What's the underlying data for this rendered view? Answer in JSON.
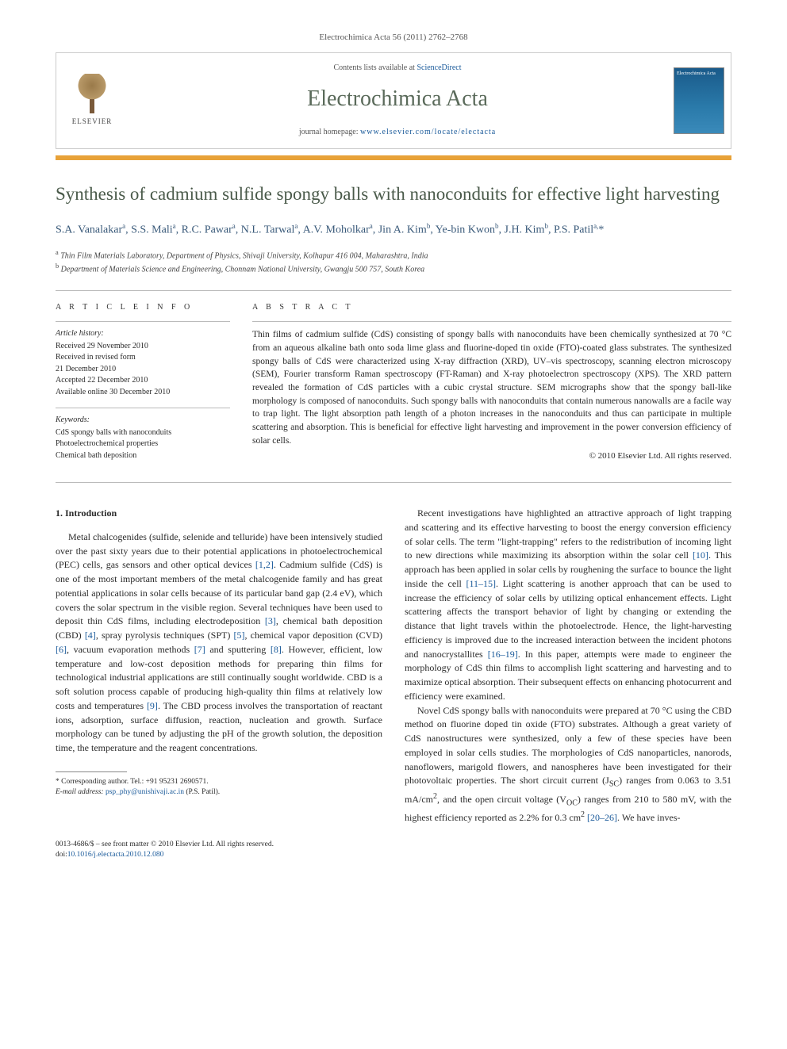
{
  "journal_ref": "Electrochimica Acta 56 (2011) 2762–2768",
  "header": {
    "contents_prefix": "Contents lists available at ",
    "contents_link": "ScienceDirect",
    "journal_title": "Electrochimica Acta",
    "homepage_prefix": "journal homepage: ",
    "homepage_url": "www.elsevier.com/locate/electacta",
    "elsevier_label": "ELSEVIER",
    "cover_text": "Electrochimica Acta"
  },
  "title": "Synthesis of cadmium sulfide spongy balls with nanoconduits for effective light harvesting",
  "authors_html": "S.A. Vanalakar<sup>a</sup>, S.S. Mali<sup>a</sup>, R.C. Pawar<sup>a</sup>, N.L. Tarwal<sup>a</sup>, A.V. Moholkar<sup>a</sup>, Jin A. Kim<sup>b</sup>, Ye-bin Kwon<sup>b</sup>, J.H. Kim<sup>b</sup>, P.S. Patil<sup>a,</sup>*",
  "affiliations": {
    "a": "Thin Film Materials Laboratory, Department of Physics, Shivaji University, Kolhapur 416 004, Maharashtra, India",
    "b": "Department of Materials Science and Engineering, Chonnam National University, Gwangju 500 757, South Korea"
  },
  "info": {
    "heading": "A R T I C L E   I N F O",
    "history_label": "Article history:",
    "received": "Received 29 November 2010",
    "revised1": "Received in revised form",
    "revised2": "21 December 2010",
    "accepted": "Accepted 22 December 2010",
    "online": "Available online 30 December 2010",
    "keywords_label": "Keywords:",
    "kw1": "CdS spongy balls with nanoconduits",
    "kw2": "Photoelectrochemical properties",
    "kw3": "Chemical bath deposition"
  },
  "abstract": {
    "heading": "A B S T R A C T",
    "text": "Thin films of cadmium sulfide (CdS) consisting of spongy balls with nanoconduits have been chemically synthesized at 70 °C from an aqueous alkaline bath onto soda lime glass and fluorine-doped tin oxide (FTO)-coated glass substrates. The synthesized spongy balls of CdS were characterized using X-ray diffraction (XRD), UV–vis spectroscopy, scanning electron microscopy (SEM), Fourier transform Raman spectroscopy (FT-Raman) and X-ray photoelectron spectroscopy (XPS). The XRD pattern revealed the formation of CdS particles with a cubic crystal structure. SEM micrographs show that the spongy ball-like morphology is composed of nanoconduits. Such spongy balls with nanoconduits that contain numerous nanowalls are a facile way to trap light. The light absorption path length of a photon increases in the nanoconduits and thus can participate in multiple scattering and absorption. This is beneficial for effective light harvesting and improvement in the power conversion efficiency of solar cells.",
    "copyright": "© 2010 Elsevier Ltd. All rights reserved."
  },
  "section1_head": "1.  Introduction",
  "col1": {
    "p1a": "Metal chalcogenides (sulfide, selenide and telluride) have been intensively studied over the past sixty years due to their potential applications in photoelectrochemical (PEC) cells, gas sensors and other optical devices ",
    "r1": "[1,2]",
    "p1b": ". Cadmium sulfide (CdS) is one of the most important members of the metal chalcogenide family and has great potential applications in solar cells because of its particular band gap (2.4 eV), which covers the solar spectrum in the visible region. Several techniques have been used to deposit thin CdS films, including electrodeposition ",
    "r3": "[3]",
    "p1c": ", chemical bath deposition (CBD) ",
    "r4": "[4]",
    "p1d": ", spray pyrolysis techniques (SPT) ",
    "r5": "[5]",
    "p1e": ", chemical vapor deposition (CVD) ",
    "r6": "[6]",
    "p1f": ", vacuum evaporation methods ",
    "r7": "[7]",
    "p1g": " and sputtering ",
    "r8": "[8]",
    "p1h": ". However, efficient, low temperature and low-cost deposition methods for preparing thin films for technological industrial applications are still continually sought worldwide. CBD is a soft solution process capable of producing high-quality thin films at relatively low costs and temperatures ",
    "r9": "[9]",
    "p1i": ". The CBD process involves the transportation of reactant ions, adsorption, surface diffusion, reaction, nucleation and growth. Surface morphology can be tuned by adjusting the pH of the growth solution, the deposition time, the temperature and the reagent concentrations."
  },
  "col2": {
    "p1a": "Recent investigations have highlighted an attractive approach of light trapping and scattering and its effective harvesting to boost the energy conversion efficiency of solar cells. The term \"light-trapping\" refers to the redistribution of incoming light to new directions while maximizing its absorption within the solar cell ",
    "r10": "[10]",
    "p1b": ". This approach has been applied in solar cells by roughening the surface to bounce the light inside the cell ",
    "r11": "[11–15]",
    "p1c": ". Light scattering is another approach that can be used to increase the efficiency of solar cells by utilizing optical enhancement effects. Light scattering affects the transport behavior of light by changing or extending the distance that light travels within the photoelectrode. Hence, the light-harvesting efficiency is improved due to the increased interaction between the incident photons and nanocrystallites ",
    "r16": "[16–19]",
    "p1d": ". In this paper, attempts were made to engineer the morphology of CdS thin films to accomplish light scattering and harvesting and to maximize optical absorption. Their subsequent effects on enhancing photocurrent and efficiency were examined.",
    "p2a": "Novel CdS spongy balls with nanoconduits were prepared at 70 °C using the CBD method on fluorine doped tin oxide (FTO) substrates. Although a great variety of CdS nanostructures were synthesized, only a few of these species have been employed in solar cells studies. The morphologies of CdS nanoparticles, nanorods, nanoflowers, marigold flowers, and nanospheres have been investigated for their photovoltaic properties. The short circuit current (J",
    "sc": "SC",
    "p2b": ") ranges from 0.063 to 3.51 mA/cm",
    "sq1": "2",
    "p2c": ", and the open circuit voltage (V",
    "oc": "OC",
    "p2d": ") ranges from 210 to 580 mV, with the highest efficiency reported as 2.2% for 0.3 cm",
    "sq2": "2",
    "sp": " ",
    "r20": "[20–26]",
    "p2e": ". We have inves-"
  },
  "footnote": {
    "corr": "* Corresponding author. Tel.: +91 95231 2690571.",
    "email_label": "E-mail address: ",
    "email": "psp_phy@unishivaji.ac.in",
    "email_suffix": " (P.S. Patil)."
  },
  "footer": {
    "issn": "0013-4686/$ – see front matter © 2010 Elsevier Ltd. All rights reserved.",
    "doi_label": "doi:",
    "doi": "10.1016/j.electacta.2010.12.080"
  }
}
